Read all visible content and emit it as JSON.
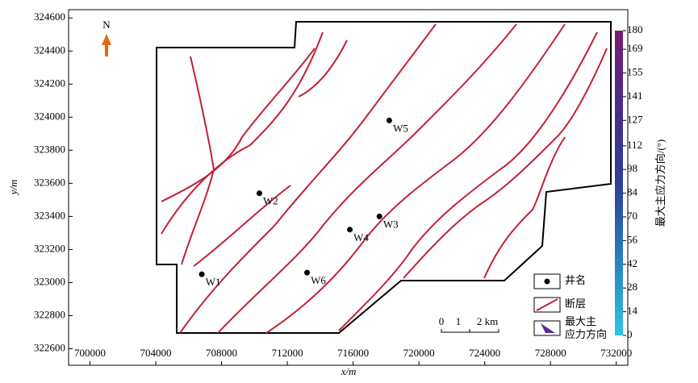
{
  "chart_data": {
    "type": "scatter",
    "x_label": "x/m",
    "y_label": "y/m",
    "xlim": [
      698700,
      732700
    ],
    "ylim": [
      322500,
      324650
    ],
    "xticks": [
      700000,
      704000,
      708000,
      712000,
      716000,
      720000,
      724000,
      728000,
      732000
    ],
    "yticks": [
      322600,
      322800,
      323000,
      323200,
      323400,
      323600,
      323800,
      324000,
      324200,
      324400,
      324600
    ],
    "wells": {
      "names": [
        "W1",
        "W2",
        "W3",
        "W4",
        "W5",
        "W6"
      ],
      "x": [
        706800,
        710300,
        717600,
        715800,
        718200,
        713200
      ],
      "y": [
        323050,
        323540,
        323400,
        323320,
        323980,
        323060
      ],
      "color": "#000000"
    },
    "north": "N",
    "colorbar": {
      "label": "最大主应力方向/(°)",
      "clim": [
        0,
        180
      ],
      "cticks": [
        0,
        14,
        28,
        42,
        56,
        70,
        84,
        98,
        112,
        127,
        141,
        155,
        169,
        180
      ],
      "colormap": [
        "#2ec4e6",
        "#2a7fc0",
        "#2c3f9a",
        "#4a2a8a",
        "#7a1e72"
      ]
    },
    "legend": {
      "well": "井名",
      "fault": "断层",
      "stress_1": "最大主",
      "stress_2": "应力方向"
    },
    "scale": [
      "0",
      "1",
      "2 km"
    ]
  }
}
